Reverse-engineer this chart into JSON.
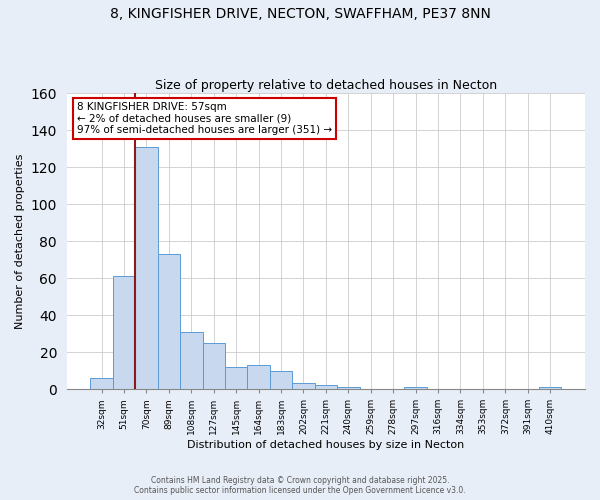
{
  "title_line1": "8, KINGFISHER DRIVE, NECTON, SWAFFHAM, PE37 8NN",
  "title_line2": "Size of property relative to detached houses in Necton",
  "xlabel": "Distribution of detached houses by size in Necton",
  "ylabel": "Number of detached properties",
  "bar_labels": [
    "32sqm",
    "51sqm",
    "70sqm",
    "89sqm",
    "108sqm",
    "127sqm",
    "145sqm",
    "164sqm",
    "183sqm",
    "202sqm",
    "221sqm",
    "240sqm",
    "259sqm",
    "278sqm",
    "297sqm",
    "316sqm",
    "334sqm",
    "353sqm",
    "372sqm",
    "391sqm",
    "410sqm"
  ],
  "bar_values": [
    6,
    61,
    131,
    73,
    31,
    25,
    12,
    13,
    10,
    3,
    2,
    1,
    0,
    0,
    1,
    0,
    0,
    0,
    0,
    0,
    1
  ],
  "bar_color": "#c8d9ef",
  "bar_edge_color": "#5b9bd5",
  "vline_x_pos": 1.5,
  "vline_color": "#8b1a1a",
  "annotation_title": "8 KINGFISHER DRIVE: 57sqm",
  "annotation_line1": "← 2% of detached houses are smaller (9)",
  "annotation_line2": "97% of semi-detached houses are larger (351) →",
  "annotation_box_color": "#ffffff",
  "annotation_box_edge": "#cc0000",
  "ylim": [
    0,
    160
  ],
  "yticks": [
    0,
    20,
    40,
    60,
    80,
    100,
    120,
    140,
    160
  ],
  "footer_line1": "Contains HM Land Registry data © Crown copyright and database right 2025.",
  "footer_line2": "Contains public sector information licensed under the Open Government Licence v3.0.",
  "fig_background": "#e8eef7",
  "plot_background": "#ffffff",
  "grid_color": "#cccccc"
}
